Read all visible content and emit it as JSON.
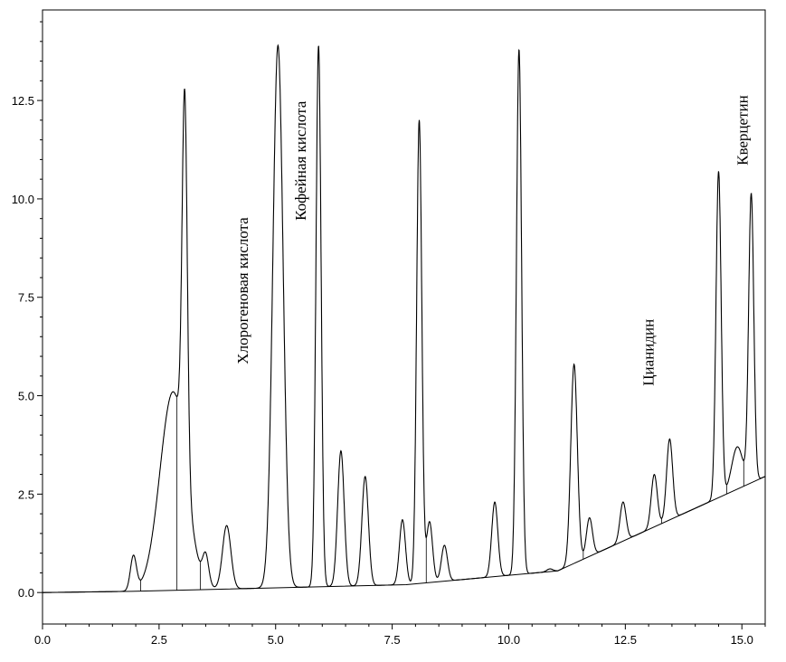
{
  "chart_data": {
    "type": "line",
    "title": "",
    "xlabel": "",
    "ylabel": "",
    "xlim": [
      0,
      15.5
    ],
    "ylim": [
      -0.8,
      14.8
    ],
    "x_ticks": [
      0.0,
      2.5,
      5.0,
      7.5,
      10.0,
      12.5,
      15.0
    ],
    "x_tick_labels": [
      "0.0",
      "2.5",
      "5.0",
      "7.5",
      "10.0",
      "12.5",
      "15.0"
    ],
    "y_ticks": [
      0.0,
      2.5,
      5.0,
      7.5,
      10.0,
      12.5
    ],
    "y_tick_labels": [
      "0.0",
      "2.5",
      "5.0",
      "7.5",
      "10.0",
      "12.5"
    ],
    "grid": false,
    "legend": "none",
    "baseline_points": [
      [
        0,
        0.0
      ],
      [
        1.9,
        0.03
      ],
      [
        7.8,
        0.2
      ],
      [
        11.05,
        0.55
      ],
      [
        15.5,
        2.95
      ]
    ],
    "peaks": [
      {
        "rt": 1.95,
        "height": 0.9
      },
      {
        "rt": 2.8,
        "height": 5.1
      },
      {
        "rt": 3.05,
        "height": 9.4
      },
      {
        "rt": 3.5,
        "height": 0.8
      },
      {
        "rt": 3.95,
        "height": 1.7
      },
      {
        "rt": 5.05,
        "height": 13.9,
        "label": "Хлорогеновая кислота"
      },
      {
        "rt": 5.92,
        "height": 13.9,
        "label": "Кофейная кислота"
      },
      {
        "rt": 6.4,
        "height": 3.6
      },
      {
        "rt": 6.92,
        "height": 2.95
      },
      {
        "rt": 7.72,
        "height": 1.85
      },
      {
        "rt": 8.08,
        "height": 12.0
      },
      {
        "rt": 8.3,
        "height": 1.8
      },
      {
        "rt": 8.62,
        "height": 1.2
      },
      {
        "rt": 9.7,
        "height": 2.3
      },
      {
        "rt": 10.22,
        "height": 13.8
      },
      {
        "rt": 10.88,
        "height": 0.6
      },
      {
        "rt": 11.4,
        "height": 5.8
      },
      {
        "rt": 11.73,
        "height": 1.9
      },
      {
        "rt": 12.45,
        "height": 2.3
      },
      {
        "rt": 12.85,
        "height": 1.5
      },
      {
        "rt": 13.12,
        "height": 3.0,
        "label": "Цианидин"
      },
      {
        "rt": 13.45,
        "height": 3.9
      },
      {
        "rt": 14.5,
        "height": 10.7
      },
      {
        "rt": 14.9,
        "height": 3.7
      },
      {
        "rt": 15.2,
        "height": 10.1,
        "label": "Кверцетин"
      }
    ]
  }
}
